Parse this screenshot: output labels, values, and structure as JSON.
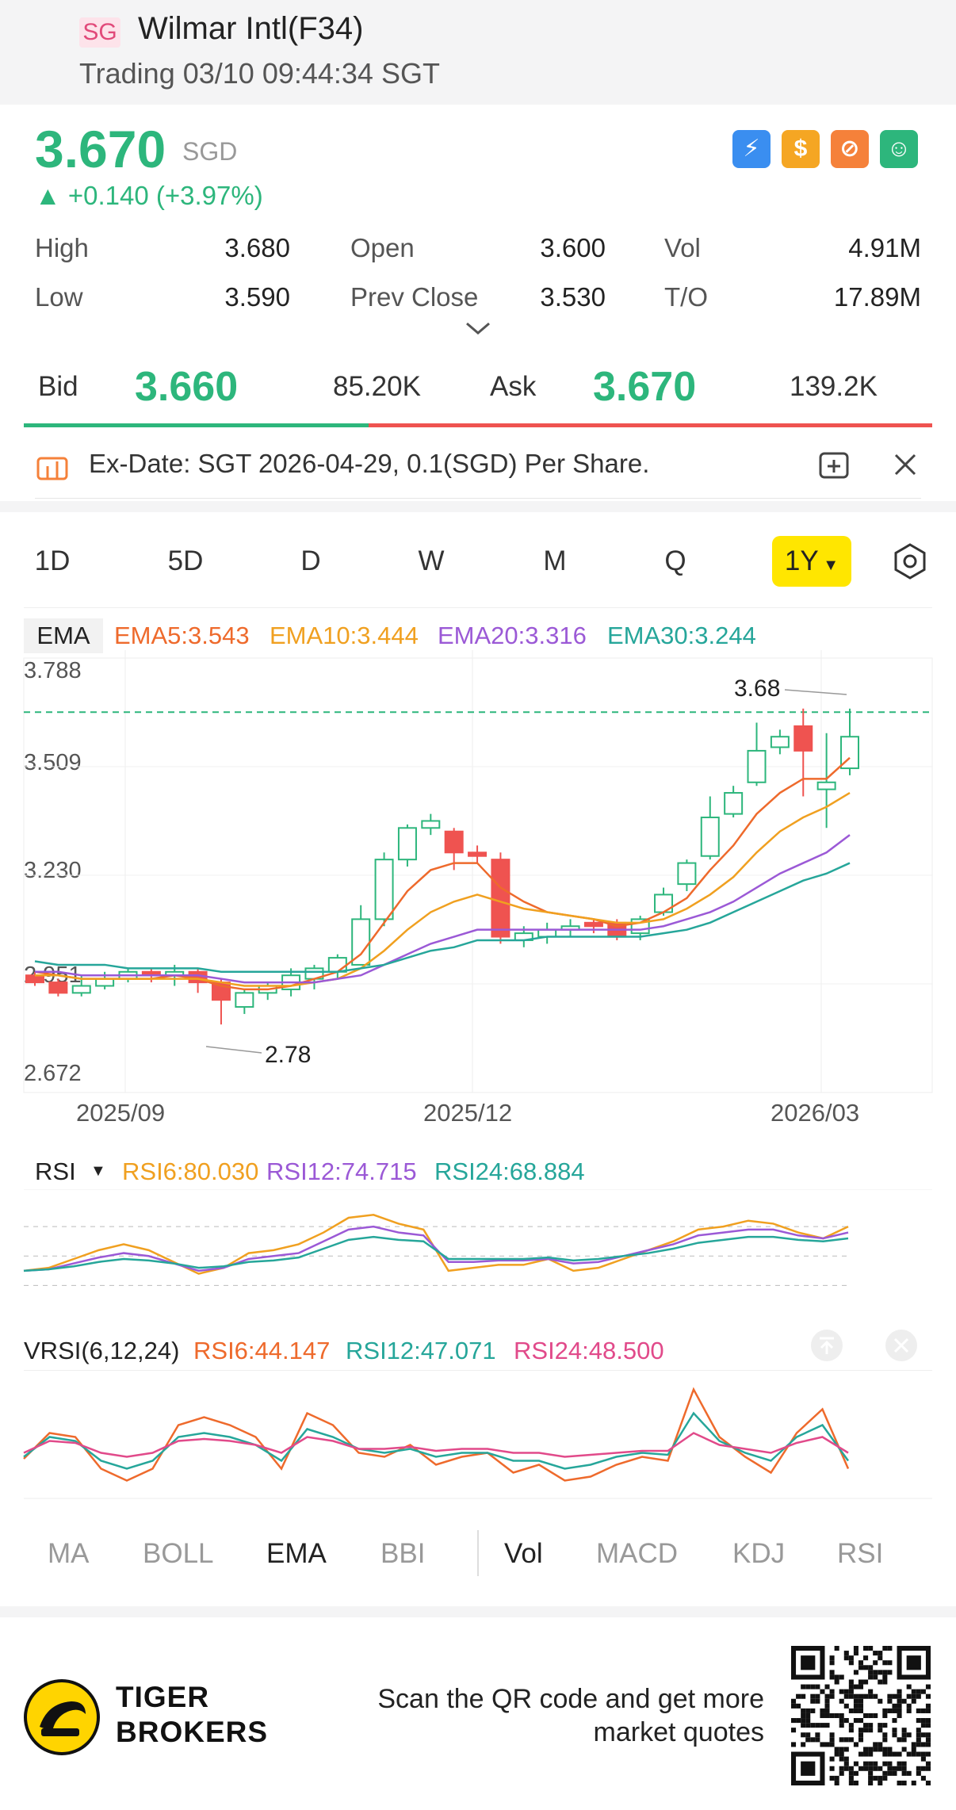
{
  "header": {
    "badge": "SG",
    "title": "Wilmar Intl(F34)",
    "subtitle": "Trading 03/10 09:44:34 SGT"
  },
  "quote": {
    "price": "3.670",
    "currency": "SGD",
    "change": "+0.140 (+3.97%)",
    "stats": [
      {
        "label": "High",
        "value": "3.680"
      },
      {
        "label": "Open",
        "value": "3.600"
      },
      {
        "label": "Vol",
        "value": "4.91M"
      },
      {
        "label": "Low",
        "value": "3.590"
      },
      {
        "label": "Prev Close",
        "value": "3.530"
      },
      {
        "label": "T/O",
        "value": "17.89M"
      }
    ],
    "bid_label": "Bid",
    "bid_price": "3.660",
    "bid_size": "85.20K",
    "ask_label": "Ask",
    "ask_price": "3.670",
    "ask_size": "139.2K",
    "bid_ratio": 0.38
  },
  "icons": [
    "lightning-icon",
    "dollar-icon",
    "no-short-icon",
    "money-hand-icon"
  ],
  "notice": {
    "text": "Ex-Date: SGT 2026-04-29, 0.1(SGD) Per Share."
  },
  "periods": [
    "1D",
    "5D",
    "D",
    "W",
    "M",
    "Q"
  ],
  "period_selected": "1Y",
  "chart": {
    "indicator": "EMA",
    "legend": [
      {
        "text": "EMA5:3.543",
        "color": "#ee6a2c"
      },
      {
        "text": "EMA10:3.444",
        "color": "#f0a020"
      },
      {
        "text": "EMA20:3.316",
        "color": "#9b59d6"
      },
      {
        "text": "EMA30:3.244",
        "color": "#26a69a"
      }
    ],
    "y_ticks": [
      "3.788",
      "3.509",
      "3.230",
      "2.951",
      "2.672"
    ],
    "x_ticks": [
      "2025/09",
      "2025/12",
      "2026/03"
    ],
    "high_note": "3.68",
    "low_note": "2.78"
  },
  "chart_data": {
    "type": "candlestick",
    "ylim": [
      2.672,
      3.788
    ],
    "candles": [
      [
        2.92,
        2.9,
        2.93,
        2.89
      ],
      [
        2.9,
        2.87,
        2.91,
        2.86
      ],
      [
        2.87,
        2.89,
        2.92,
        2.86
      ],
      [
        2.89,
        2.91,
        2.93,
        2.88
      ],
      [
        2.91,
        2.93,
        2.94,
        2.9
      ],
      [
        2.93,
        2.92,
        2.94,
        2.9
      ],
      [
        2.92,
        2.93,
        2.95,
        2.89
      ],
      [
        2.93,
        2.9,
        2.94,
        2.87
      ],
      [
        2.9,
        2.85,
        2.91,
        2.78
      ],
      [
        2.83,
        2.87,
        2.88,
        2.81
      ],
      [
        2.87,
        2.89,
        2.9,
        2.85
      ],
      [
        2.88,
        2.92,
        2.94,
        2.86
      ],
      [
        2.91,
        2.94,
        2.95,
        2.88
      ],
      [
        2.93,
        2.97,
        2.98,
        2.91
      ],
      [
        2.95,
        3.08,
        3.12,
        2.95
      ],
      [
        3.08,
        3.25,
        3.27,
        3.06
      ],
      [
        3.25,
        3.34,
        3.35,
        3.23
      ],
      [
        3.34,
        3.36,
        3.38,
        3.32
      ],
      [
        3.33,
        3.27,
        3.34,
        3.22
      ],
      [
        3.27,
        3.26,
        3.29,
        3.24
      ],
      [
        3.25,
        3.03,
        3.27,
        3.01
      ],
      [
        3.02,
        3.04,
        3.06,
        3.0
      ],
      [
        3.03,
        3.05,
        3.07,
        3.01
      ],
      [
        3.05,
        3.06,
        3.08,
        3.03
      ],
      [
        3.07,
        3.06,
        3.08,
        3.04
      ],
      [
        3.07,
        3.03,
        3.08,
        3.02
      ],
      [
        3.04,
        3.08,
        3.09,
        3.02
      ],
      [
        3.1,
        3.15,
        3.17,
        3.09
      ],
      [
        3.18,
        3.24,
        3.25,
        3.16
      ],
      [
        3.26,
        3.37,
        3.43,
        3.25
      ],
      [
        3.38,
        3.44,
        3.46,
        3.37
      ],
      [
        3.47,
        3.56,
        3.64,
        3.46
      ],
      [
        3.57,
        3.6,
        3.62,
        3.55
      ],
      [
        3.63,
        3.56,
        3.68,
        3.43
      ],
      [
        3.45,
        3.47,
        3.61,
        3.34
      ],
      [
        3.51,
        3.6,
        3.68,
        3.49
      ]
    ],
    "series": [
      {
        "name": "EMA5",
        "values": [
          2.93,
          2.92,
          2.91,
          2.91,
          2.91,
          2.91,
          2.92,
          2.91,
          2.89,
          2.88,
          2.88,
          2.89,
          2.91,
          2.93,
          2.98,
          3.07,
          3.16,
          3.22,
          3.24,
          3.24,
          3.17,
          3.13,
          3.1,
          3.09,
          3.08,
          3.06,
          3.07,
          3.1,
          3.14,
          3.22,
          3.29,
          3.38,
          3.44,
          3.48,
          3.48,
          3.54
        ]
      },
      {
        "name": "EMA10",
        "values": [
          2.92,
          2.92,
          2.91,
          2.91,
          2.91,
          2.91,
          2.91,
          2.91,
          2.9,
          2.89,
          2.89,
          2.89,
          2.9,
          2.91,
          2.94,
          2.99,
          3.05,
          3.1,
          3.13,
          3.15,
          3.13,
          3.11,
          3.1,
          3.09,
          3.08,
          3.07,
          3.07,
          3.08,
          3.11,
          3.15,
          3.2,
          3.27,
          3.33,
          3.37,
          3.4,
          3.44
        ]
      },
      {
        "name": "EMA20",
        "values": [
          2.93,
          2.93,
          2.92,
          2.92,
          2.92,
          2.92,
          2.92,
          2.92,
          2.91,
          2.9,
          2.9,
          2.9,
          2.9,
          2.91,
          2.92,
          2.95,
          2.98,
          3.01,
          3.03,
          3.05,
          3.05,
          3.05,
          3.05,
          3.05,
          3.05,
          3.05,
          3.05,
          3.06,
          3.08,
          3.1,
          3.13,
          3.17,
          3.21,
          3.24,
          3.27,
          3.32
        ]
      },
      {
        "name": "EMA30",
        "values": [
          2.96,
          2.95,
          2.95,
          2.95,
          2.94,
          2.94,
          2.94,
          2.94,
          2.93,
          2.93,
          2.93,
          2.93,
          2.93,
          2.93,
          2.94,
          2.95,
          2.97,
          2.99,
          3.0,
          3.02,
          3.02,
          3.02,
          3.03,
          3.03,
          3.03,
          3.03,
          3.03,
          3.04,
          3.05,
          3.07,
          3.1,
          3.13,
          3.16,
          3.19,
          3.21,
          3.24
        ]
      }
    ]
  },
  "rsi": {
    "label": "RSI",
    "legend": [
      {
        "text": "RSI6:80.030",
        "color": "#f0a020"
      },
      {
        "text": "RSI12:74.715",
        "color": "#9b59d6"
      },
      {
        "text": "RSI24:68.884",
        "color": "#26a69a"
      }
    ],
    "series": [
      {
        "name": "RSI6",
        "values": [
          40,
          42,
          48,
          54,
          58,
          54,
          46,
          38,
          42,
          52,
          54,
          58,
          66,
          76,
          78,
          72,
          68,
          40,
          42,
          44,
          44,
          48,
          40,
          42,
          48,
          54,
          60,
          68,
          70,
          74,
          72,
          66,
          62,
          70
        ]
      },
      {
        "name": "RSI12",
        "values": [
          40,
          41,
          45,
          49,
          52,
          50,
          45,
          40,
          42,
          48,
          50,
          52,
          60,
          68,
          70,
          66,
          64,
          46,
          46,
          47,
          47,
          48,
          45,
          46,
          50,
          54,
          58,
          64,
          66,
          68,
          68,
          64,
          62,
          66
        ]
      },
      {
        "name": "RSI24",
        "values": [
          40,
          41,
          43,
          46,
          48,
          47,
          45,
          42,
          43,
          46,
          47,
          49,
          55,
          61,
          63,
          61,
          60,
          48,
          48,
          48,
          48,
          49,
          47,
          48,
          50,
          52,
          55,
          59,
          61,
          63,
          63,
          61,
          60,
          62
        ]
      }
    ]
  },
  "vrsi": {
    "label": "VRSI(6,12,24)",
    "legend": [
      {
        "text": "RSI6:44.147",
        "color": "#ee6a2c"
      },
      {
        "text": "RSI12:47.071",
        "color": "#26a69a"
      },
      {
        "text": "RSI24:48.500",
        "color": "#e14a8a"
      }
    ],
    "series": [
      {
        "name": "RSI6",
        "values": [
          45,
          58,
          56,
          40,
          34,
          40,
          62,
          66,
          62,
          56,
          40,
          68,
          62,
          48,
          46,
          52,
          42,
          46,
          48,
          38,
          42,
          34,
          36,
          42,
          46,
          44,
          80,
          56,
          46,
          38,
          58,
          70,
          40
        ]
      },
      {
        "name": "RSI12",
        "values": [
          46,
          56,
          54,
          44,
          40,
          44,
          56,
          58,
          56,
          52,
          44,
          60,
          56,
          50,
          48,
          50,
          46,
          48,
          48,
          44,
          44,
          40,
          42,
          46,
          48,
          47,
          68,
          54,
          48,
          44,
          56,
          62,
          44
        ]
      },
      {
        "name": "RSI24",
        "values": [
          48,
          54,
          53,
          48,
          46,
          48,
          54,
          55,
          54,
          52,
          48,
          56,
          54,
          50,
          50,
          51,
          49,
          50,
          50,
          48,
          48,
          46,
          47,
          48,
          49,
          49,
          58,
          52,
          50,
          48,
          53,
          56,
          48
        ]
      }
    ]
  },
  "indicators": [
    "MA",
    "BOLL",
    "EMA",
    "BBI",
    "Vol",
    "MACD",
    "KDJ",
    "RSI"
  ],
  "footer": {
    "brand_line1": "TIGER",
    "brand_line2": "BROKERS",
    "scan_line1": "Scan the QR code and get more",
    "scan_line2": "market quotes"
  }
}
